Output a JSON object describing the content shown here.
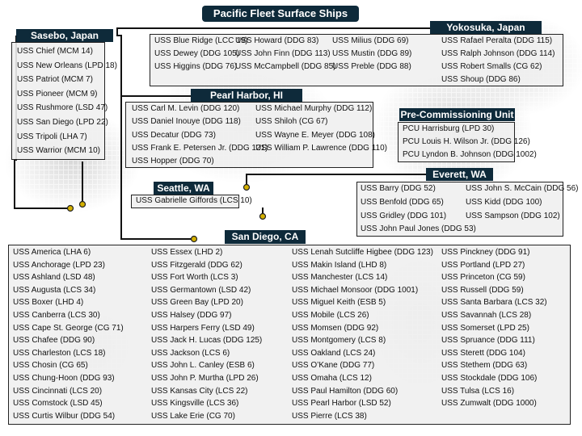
{
  "title": "Pacific Fleet Surface Ships",
  "colors": {
    "header": "#0e2a3a",
    "dot": "#d4b000"
  },
  "sasebo": {
    "label": "Sasebo, Japan",
    "ships": [
      "USS Chief (MCM 14)",
      "USS New Orleans (LPD 18)",
      "USS Patriot (MCM 7)",
      "USS Pioneer (MCM 9)",
      "USS Rushmore (LSD 47)",
      "USS San Diego (LPD 22)",
      "USS Tripoli (LHA 7)",
      "USS Warrior (MCM 10)"
    ]
  },
  "yokosuka": {
    "label": "Yokosuka, Japan",
    "columns": [
      [
        "USS Blue Ridge (LCC 19)",
        "USS Dewey (DDG 105)",
        "USS Higgins (DDG 76)"
      ],
      [
        "USS Howard (DDG 83)",
        "USS John Finn (DDG 113)",
        "USS McCampbell (DDG 85)"
      ],
      [
        "USS Milius (DDG 69)",
        "USS Mustin (DDG 89)",
        "USS Preble (DDG 88)"
      ],
      [
        "USS Rafael Peralta (DDG 115)",
        "USS Ralph Johnson (DDG 114)",
        "USS Robert Smalls (CG 62)",
        "USS Shoup (DDG 86)"
      ]
    ]
  },
  "pearl": {
    "label": "Pearl Harbor, HI",
    "columns": [
      [
        "USS Carl M. Levin (DDG 120)",
        "USS Daniel Inouye (DDG 118)",
        "USS Decatur (DDG 73)",
        "USS Frank E. Petersen Jr. (DDG 121)",
        "USS Hopper (DDG 70)"
      ],
      [
        "USS Michael Murphy (DDG 112)",
        "USS Shiloh (CG 67)",
        "USS Wayne E. Meyer (DDG 108)",
        "USS William P. Lawrence (DDG 110)"
      ]
    ]
  },
  "pcu": {
    "label": "Pre-Commissioning Unit",
    "ships": [
      "PCU Harrisburg (LPD 30)",
      "PCU Louis H. Wilson Jr. (DDG 126)",
      "PCU Lyndon B. Johnson (DDG 1002)"
    ]
  },
  "seattle": {
    "label": "Seattle, WA",
    "ships": [
      "USS Gabrielle Giffords (LCS 10)"
    ]
  },
  "everett": {
    "label": "Everett, WA",
    "columns": [
      [
        "USS Barry (DDG 52)",
        "USS Benfold (DDG 65)",
        "USS Gridley (DDG 101)",
        "USS John Paul Jones (DDG 53)"
      ],
      [
        "USS John S. McCain (DDG 56)",
        "USS Kidd (DDG 100)",
        "USS Sampson (DDG 102)"
      ]
    ]
  },
  "sandiego": {
    "label": "San Diego, CA",
    "columns": [
      [
        "USS America (LHA 6)",
        "USS Anchorage (LPD 23)",
        "USS Ashland (LSD 48)",
        "USS Augusta (LCS 34)",
        "USS Boxer (LHD 4)",
        "USS Canberra (LCS 30)",
        "USS Cape St. George (CG 71)",
        "USS Chafee (DDG 90)",
        "USS Charleston (LCS 18)",
        "USS Chosin (CG 65)",
        "USS Chung-Hoon (DDG 93)",
        "USS Cincinnati (LCS 20)",
        "USS Comstock (LSD 45)",
        "USS Curtis Wilbur (DDG 54)"
      ],
      [
        "USS Essex  (LHD 2)",
        "USS Fitzgerald (DDG 62)",
        "USS Fort Worth (LCS 3)",
        "USS Germantown (LSD 42)",
        "USS Green Bay (LPD 20)",
        "USS Halsey (DDG 97)",
        "USS Harpers Ferry (LSD 49)",
        "USS Jack H. Lucas (DDG 125)",
        "USS Jackson (LCS 6)",
        "USS John L. Canley (ESB 6)",
        "USS John P. Murtha (LPD 26)",
        "USS Kansas City (LCS 22)",
        "USS Kingsville (LCS 36)",
        "USS Lake Erie (CG 70)"
      ],
      [
        "USS Lenah Sutcliffe Higbee (DDG 123)",
        "USS Makin Island (LHD 8)",
        "USS Manchester (LCS 14)",
        "USS Michael Monsoor (DDG 1001)",
        "USS Miguel Keith (ESB 5)",
        "USS Mobile (LCS 26)",
        "USS Momsen (DDG 92)",
        "USS Montgomery (LCS 8)",
        "USS Oakland (LCS 24)",
        "USS O’Kane (DDG 77)",
        "USS Omaha (LCS 12)",
        "USS Paul Hamilton (DDG 60)",
        "USS Pearl Harbor (LSD 52)",
        "USS Pierre (LCS 38)"
      ],
      [
        "USS Pinckney (DDG 91)",
        "USS Portland (LPD 27)",
        "USS Princeton (CG 59)",
        "USS Russell (DDG 59)",
        "USS Santa Barbara (LCS 32)",
        "USS Savannah (LCS 28)",
        "USS Somerset (LPD 25)",
        "USS Spruance (DDG 111)",
        "USS Sterett (DDG 104)",
        "USS Stethem (DDG 63)",
        "USS Stockdale (DDG 106)",
        "USS Tulsa (LCS 16)",
        "USS Zumwalt (DDG 1000)"
      ]
    ]
  }
}
